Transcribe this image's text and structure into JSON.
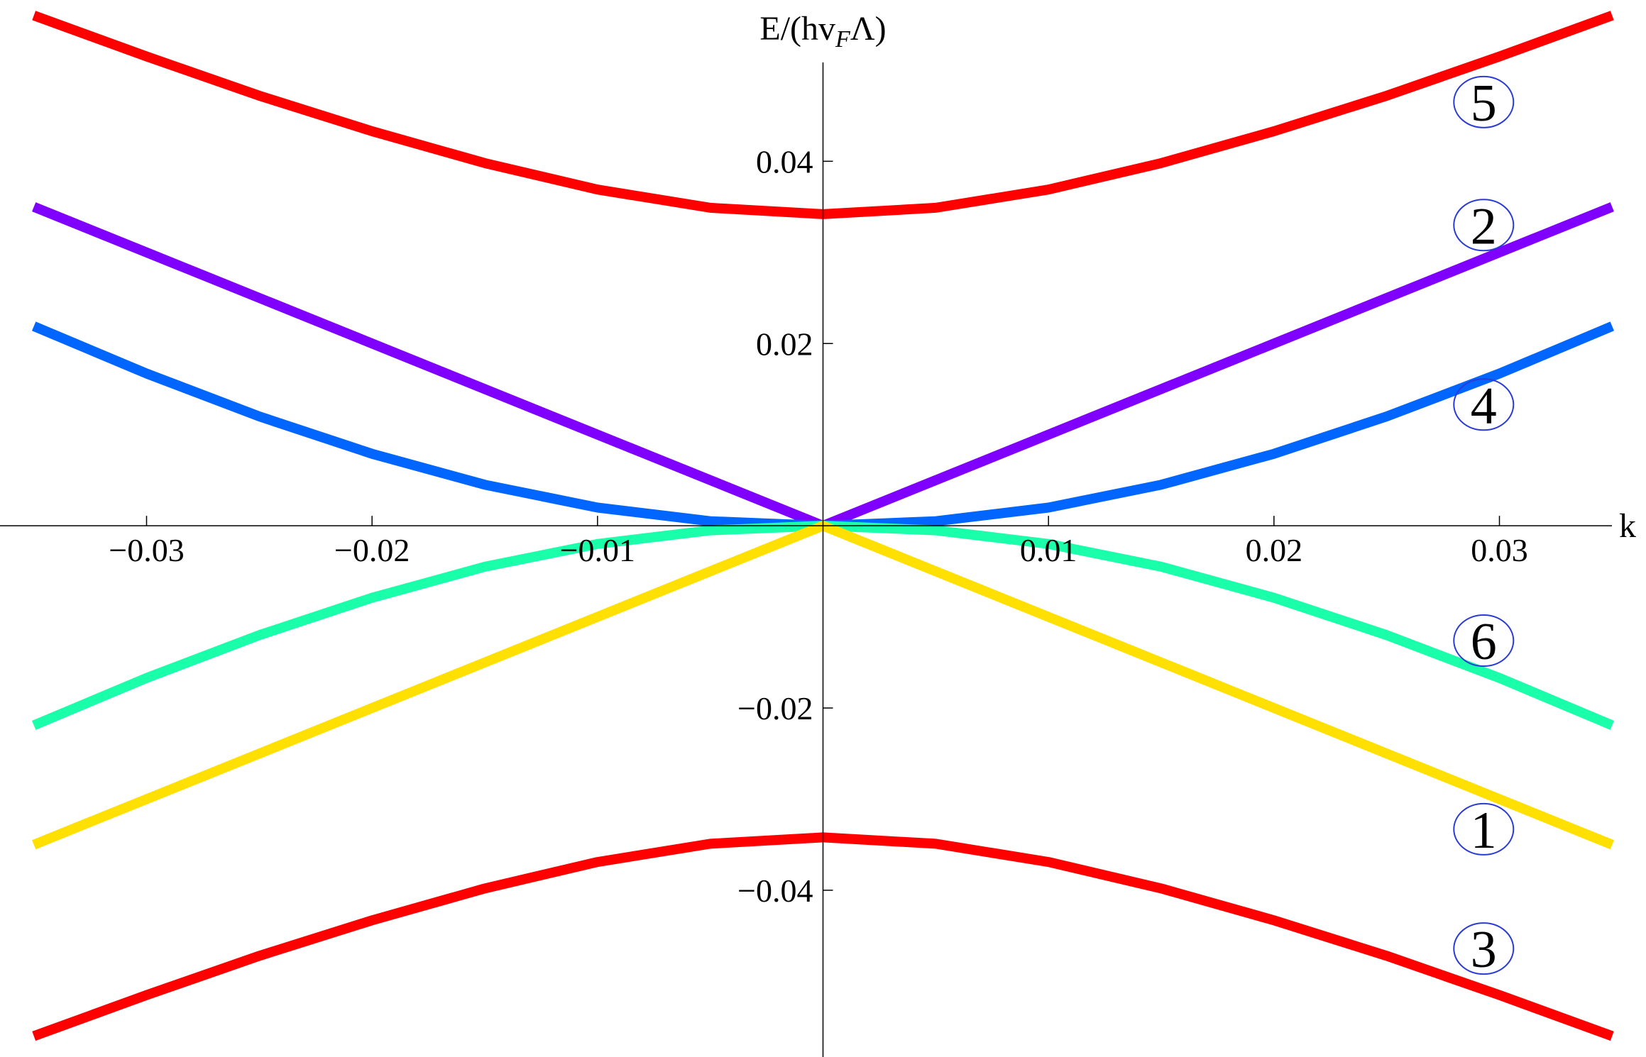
{
  "chart_data": {
    "type": "line",
    "title": "",
    "xlabel": "k",
    "ylabel": "E/(hv_FΛ)",
    "ylabel_parts": {
      "pre": "E/(hv",
      "sub": "F",
      "post": "Λ)"
    },
    "xlim": [
      -0.0365,
      0.0365
    ],
    "ylim": [
      -0.0583,
      0.0577
    ],
    "x_ticks": [
      {
        "value": -0.03,
        "label": "−0.03"
      },
      {
        "value": -0.02,
        "label": "−0.02"
      },
      {
        "value": -0.01,
        "label": "−0.01"
      },
      {
        "value": 0.01,
        "label": "0.01"
      },
      {
        "value": 0.02,
        "label": "0.02"
      },
      {
        "value": 0.03,
        "label": "0.03"
      }
    ],
    "y_ticks": [
      {
        "value": 0.04,
        "label": "0.04"
      },
      {
        "value": 0.02,
        "label": "0.02"
      },
      {
        "value": -0.02,
        "label": "−0.02"
      },
      {
        "value": -0.04,
        "label": "−0.04"
      }
    ],
    "grid": false,
    "legend": "inline circled numbers near right ends of curves",
    "series": [
      {
        "id": "5",
        "label": "5",
        "color": "#ff0000",
        "x": [
          -0.035,
          -0.03,
          -0.025,
          -0.02,
          -0.015,
          -0.01,
          -0.005,
          0,
          0.005,
          0.01,
          0.015,
          0.02,
          0.025,
          0.03,
          0.035
        ],
        "y": [
          0.056,
          0.0515,
          0.0472,
          0.0433,
          0.0398,
          0.0369,
          0.0349,
          0.0342,
          0.0349,
          0.0369,
          0.0398,
          0.0433,
          0.0472,
          0.0515,
          0.056
        ],
        "label_at": {
          "x": 0.0293,
          "y": 0.0465
        }
      },
      {
        "id": "2",
        "label": "2",
        "color": "#7f00ff",
        "x": [
          -0.035,
          0,
          0.035
        ],
        "y": [
          0.035,
          0,
          0.035
        ],
        "label_at": {
          "x": 0.0293,
          "y": 0.033
        }
      },
      {
        "id": "4",
        "label": "4",
        "color": "#0066ff",
        "x": [
          -0.035,
          -0.03,
          -0.025,
          -0.02,
          -0.015,
          -0.01,
          -0.005,
          0,
          0.005,
          0.01,
          0.015,
          0.02,
          0.025,
          0.03,
          0.035
        ],
        "y": [
          0.0219,
          0.0167,
          0.012,
          0.0079,
          0.0045,
          0.002,
          0.0005,
          0,
          0.0005,
          0.002,
          0.0045,
          0.0079,
          0.012,
          0.0167,
          0.0219
        ],
        "label_at": {
          "x": 0.0293,
          "y": 0.0133
        }
      },
      {
        "id": "6",
        "label": "6",
        "color": "#1affaa",
        "x": [
          -0.035,
          -0.03,
          -0.025,
          -0.02,
          -0.015,
          -0.01,
          -0.005,
          0,
          0.005,
          0.01,
          0.015,
          0.02,
          0.025,
          0.03,
          0.035
        ],
        "y": [
          -0.0219,
          -0.0167,
          -0.012,
          -0.0079,
          -0.0045,
          -0.002,
          -0.0005,
          0,
          -0.0005,
          -0.002,
          -0.0045,
          -0.0079,
          -0.012,
          -0.0167,
          -0.0219
        ],
        "label_at": {
          "x": 0.0293,
          "y": -0.0126
        }
      },
      {
        "id": "1",
        "label": "1",
        "color": "#ffe000",
        "x": [
          -0.035,
          0,
          0.035
        ],
        "y": [
          -0.035,
          0,
          -0.035
        ],
        "label_at": {
          "x": 0.0293,
          "y": -0.0333
        }
      },
      {
        "id": "3",
        "label": "3",
        "color": "#ff0000",
        "x": [
          -0.035,
          -0.03,
          -0.025,
          -0.02,
          -0.015,
          -0.01,
          -0.005,
          0,
          0.005,
          0.01,
          0.015,
          0.02,
          0.025,
          0.03,
          0.035
        ],
        "y": [
          -0.056,
          -0.0515,
          -0.0472,
          -0.0433,
          -0.0398,
          -0.0369,
          -0.0349,
          -0.0342,
          -0.0349,
          -0.0369,
          -0.0398,
          -0.0433,
          -0.0472,
          -0.0515,
          -0.056
        ],
        "label_at": {
          "x": 0.0293,
          "y": -0.0464
        }
      }
    ]
  }
}
